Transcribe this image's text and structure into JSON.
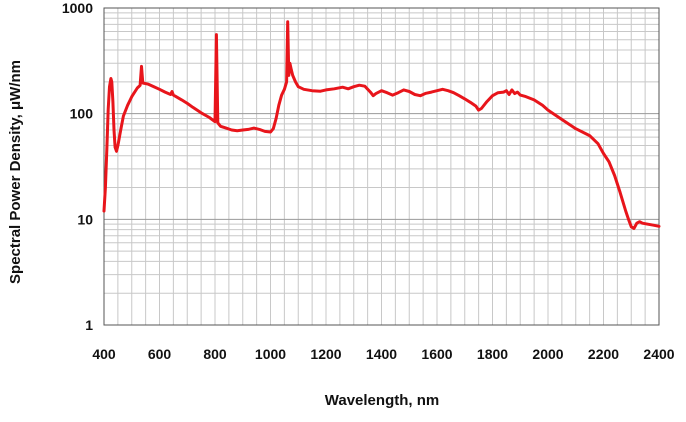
{
  "chart_data": {
    "type": "line",
    "title": "",
    "xlabel": "Wavelength, nm",
    "ylabel": "Spectral Power Density, μW/nm",
    "xlim": [
      400,
      2400
    ],
    "ylim": [
      1,
      1000
    ],
    "yscale": "log",
    "grid": true,
    "legend": "none",
    "x_ticks": [
      "400",
      "600",
      "800",
      "1000",
      "1200",
      "1400",
      "1600",
      "1800",
      "2000",
      "2200",
      "2400"
    ],
    "y_ticks": [
      "1",
      "10",
      "100",
      "1000"
    ],
    "series": [
      {
        "color": "#e8151b",
        "points": [
          [
            400,
            12
          ],
          [
            405,
            20
          ],
          [
            410,
            45
          ],
          [
            415,
            110
          ],
          [
            420,
            180
          ],
          [
            425,
            215
          ],
          [
            428,
            200
          ],
          [
            432,
            130
          ],
          [
            436,
            70
          ],
          [
            440,
            48
          ],
          [
            445,
            44
          ],
          [
            450,
            50
          ],
          [
            460,
            70
          ],
          [
            470,
            95
          ],
          [
            485,
            120
          ],
          [
            500,
            145
          ],
          [
            520,
            175
          ],
          [
            530,
            185
          ],
          [
            535,
            280
          ],
          [
            540,
            195
          ],
          [
            560,
            190
          ],
          [
            580,
            180
          ],
          [
            600,
            170
          ],
          [
            620,
            160
          ],
          [
            640,
            152
          ],
          [
            645,
            162
          ],
          [
            650,
            150
          ],
          [
            680,
            135
          ],
          [
            700,
            125
          ],
          [
            720,
            115
          ],
          [
            750,
            102
          ],
          [
            780,
            92
          ],
          [
            800,
            84
          ],
          [
            805,
            560
          ],
          [
            810,
            82
          ],
          [
            820,
            76
          ],
          [
            840,
            73
          ],
          [
            860,
            70
          ],
          [
            880,
            69
          ],
          [
            900,
            70
          ],
          [
            920,
            71
          ],
          [
            940,
            73
          ],
          [
            960,
            71
          ],
          [
            980,
            68
          ],
          [
            1000,
            67
          ],
          [
            1010,
            72
          ],
          [
            1020,
            90
          ],
          [
            1030,
            120
          ],
          [
            1040,
            150
          ],
          [
            1050,
            170
          ],
          [
            1058,
            200
          ],
          [
            1062,
            740
          ],
          [
            1066,
            230
          ],
          [
            1070,
            300
          ],
          [
            1075,
            260
          ],
          [
            1080,
            230
          ],
          [
            1090,
            200
          ],
          [
            1100,
            180
          ],
          [
            1120,
            170
          ],
          [
            1150,
            165
          ],
          [
            1180,
            163
          ],
          [
            1200,
            168
          ],
          [
            1230,
            172
          ],
          [
            1260,
            178
          ],
          [
            1280,
            172
          ],
          [
            1300,
            180
          ],
          [
            1320,
            186
          ],
          [
            1340,
            182
          ],
          [
            1360,
            160
          ],
          [
            1370,
            148
          ],
          [
            1380,
            155
          ],
          [
            1400,
            165
          ],
          [
            1420,
            158
          ],
          [
            1440,
            150
          ],
          [
            1460,
            158
          ],
          [
            1480,
            168
          ],
          [
            1500,
            162
          ],
          [
            1520,
            152
          ],
          [
            1540,
            148
          ],
          [
            1560,
            156
          ],
          [
            1580,
            160
          ],
          [
            1600,
            165
          ],
          [
            1620,
            170
          ],
          [
            1640,
            165
          ],
          [
            1660,
            158
          ],
          [
            1680,
            148
          ],
          [
            1700,
            138
          ],
          [
            1720,
            128
          ],
          [
            1740,
            118
          ],
          [
            1750,
            108
          ],
          [
            1760,
            112
          ],
          [
            1780,
            130
          ],
          [
            1800,
            148
          ],
          [
            1820,
            158
          ],
          [
            1840,
            160
          ],
          [
            1850,
            165
          ],
          [
            1860,
            152
          ],
          [
            1870,
            168
          ],
          [
            1880,
            155
          ],
          [
            1890,
            160
          ],
          [
            1900,
            150
          ],
          [
            1920,
            145
          ],
          [
            1950,
            135
          ],
          [
            1980,
            120
          ],
          [
            2000,
            108
          ],
          [
            2050,
            88
          ],
          [
            2100,
            72
          ],
          [
            2150,
            62
          ],
          [
            2180,
            52
          ],
          [
            2200,
            42
          ],
          [
            2220,
            35
          ],
          [
            2240,
            26
          ],
          [
            2260,
            18
          ],
          [
            2280,
            12
          ],
          [
            2290,
            10
          ],
          [
            2300,
            8.5
          ],
          [
            2310,
            8.2
          ],
          [
            2320,
            9.2
          ],
          [
            2330,
            9.5
          ],
          [
            2340,
            9.2
          ],
          [
            2360,
            9.0
          ],
          [
            2380,
            8.8
          ],
          [
            2400,
            8.6
          ]
        ]
      }
    ]
  }
}
